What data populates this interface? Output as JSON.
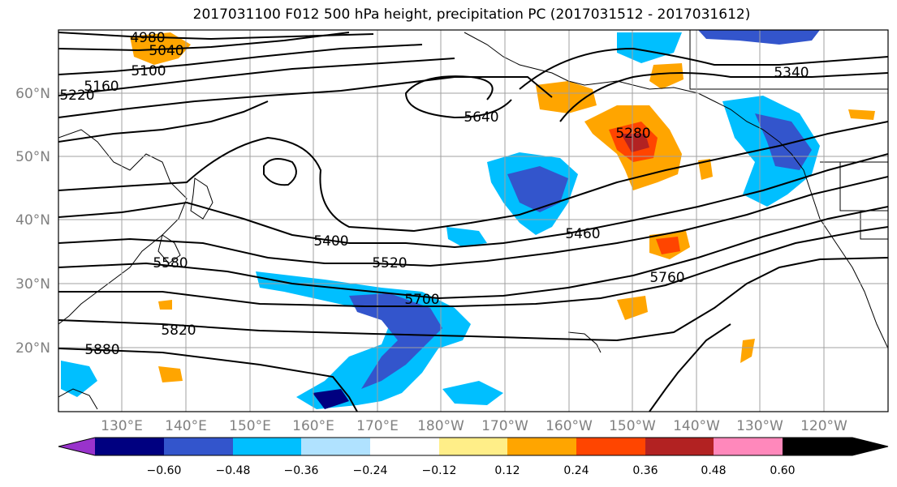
{
  "title": "2017031100 F012 500 hPa height, precipitation PC (2017031512 - 2017031612)",
  "lat_labels": [
    "60°N",
    "50°N",
    "40°N",
    "30°N",
    "20°N"
  ],
  "lon_labels": [
    "130°E",
    "140°E",
    "150°E",
    "160°E",
    "170°E",
    "180°W",
    "170°W",
    "160°W",
    "150°W",
    "140°W",
    "130°W",
    "120°W"
  ],
  "contour_labels": [
    "4980",
    "5040",
    "5100",
    "5160",
    "5220",
    "5280",
    "5340",
    "5400",
    "5460",
    "5520",
    "5580",
    "5640",
    "5700",
    "5760",
    "5820",
    "5880"
  ],
  "colorbar": {
    "colors": [
      "#9933cc",
      "#000080",
      "#3355cc",
      "#00bfff",
      "#b0e2ff",
      "#ffffff",
      "#ffee88",
      "#ffa500",
      "#ff4500",
      "#b22222",
      "#ff88bb"
    ],
    "tick_labels": [
      "−0.60",
      "−0.48",
      "−0.36",
      "−0.24",
      "−0.12",
      "0.12",
      "0.24",
      "0.36",
      "0.48",
      "0.60"
    ]
  }
}
